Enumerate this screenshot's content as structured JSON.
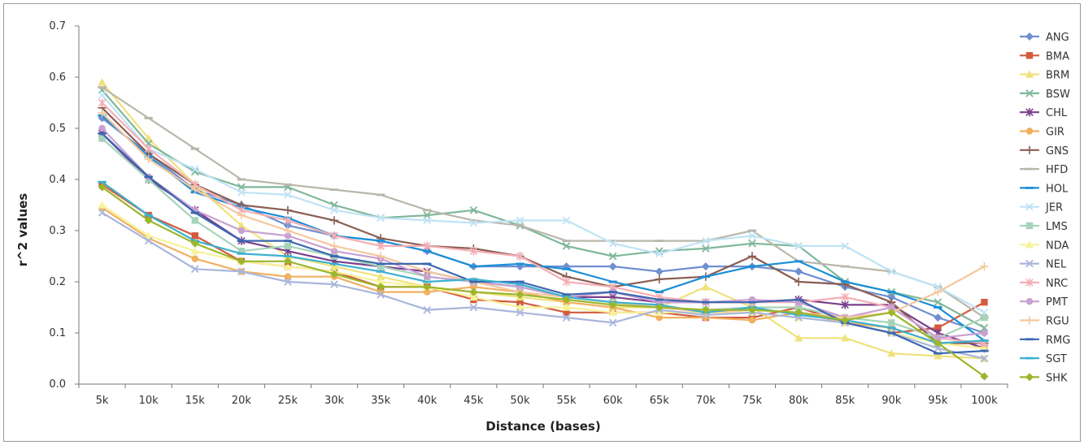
{
  "chart_data": {
    "type": "line",
    "title": "",
    "xlabel": "Distance (bases)",
    "ylabel": "r^2 values",
    "ylim": [
      0,
      0.7
    ],
    "yticks": [
      "0.0",
      "0.1",
      "0.2",
      "0.3",
      "0.4",
      "0.5",
      "0.6",
      "0.7"
    ],
    "grid": false,
    "legend_position": "right",
    "categories": [
      "5k",
      "10k",
      "15k",
      "20k",
      "25k",
      "30k",
      "35k",
      "40k",
      "45k",
      "50k",
      "55k",
      "60k",
      "65k",
      "70k",
      "75k",
      "80k",
      "85k",
      "90k",
      "95k",
      "100k"
    ],
    "series": [
      {
        "name": "ANG",
        "color": "#6f8fd0",
        "marker": "diamond",
        "values": [
          0.52,
          0.45,
          0.38,
          0.35,
          0.31,
          0.29,
          0.28,
          0.26,
          0.23,
          0.23,
          0.23,
          0.23,
          0.22,
          0.23,
          0.23,
          0.22,
          0.19,
          0.17,
          0.13,
          0.1
        ]
      },
      {
        "name": "BMA",
        "color": "#d35a3c",
        "marker": "square",
        "values": [
          0.39,
          0.33,
          0.29,
          0.24,
          0.23,
          0.22,
          0.19,
          0.19,
          0.165,
          0.16,
          0.14,
          0.14,
          0.14,
          0.13,
          0.13,
          0.15,
          0.12,
          0.1,
          0.11,
          0.16
        ]
      },
      {
        "name": "BRM",
        "color": "#efe27c",
        "marker": "triangle",
        "values": [
          0.59,
          0.48,
          0.39,
          0.31,
          0.25,
          0.23,
          0.21,
          0.19,
          0.18,
          0.17,
          0.16,
          0.15,
          0.15,
          0.19,
          0.15,
          0.09,
          0.09,
          0.06,
          0.055,
          0.05
        ]
      },
      {
        "name": "BSW",
        "color": "#7fb79a",
        "marker": "x",
        "values": [
          0.575,
          0.47,
          0.415,
          0.385,
          0.385,
          0.35,
          0.325,
          0.33,
          0.34,
          0.31,
          0.27,
          0.25,
          0.26,
          0.265,
          0.275,
          0.27,
          0.2,
          0.18,
          0.16,
          0.11
        ]
      },
      {
        "name": "CHL",
        "color": "#7a3f8c",
        "marker": "star",
        "values": [
          0.49,
          0.4,
          0.34,
          0.28,
          0.26,
          0.24,
          0.23,
          0.22,
          0.2,
          0.19,
          0.17,
          0.17,
          0.16,
          0.16,
          0.16,
          0.165,
          0.155,
          0.155,
          0.1,
          0.07
        ]
      },
      {
        "name": "GIR",
        "color": "#f0b060",
        "marker": "circle",
        "values": [
          0.345,
          0.285,
          0.245,
          0.22,
          0.21,
          0.21,
          0.18,
          0.18,
          0.19,
          0.18,
          0.16,
          0.15,
          0.13,
          0.13,
          0.125,
          0.14,
          0.12,
          0.11,
          0.08,
          0.07
        ]
      },
      {
        "name": "GNS",
        "color": "#8a5d52",
        "marker": "plus",
        "values": [
          0.54,
          0.45,
          0.39,
          0.35,
          0.34,
          0.32,
          0.285,
          0.27,
          0.265,
          0.25,
          0.21,
          0.19,
          0.205,
          0.21,
          0.25,
          0.2,
          0.195,
          0.16,
          0.08,
          0.08
        ]
      },
      {
        "name": "HFD",
        "color": "#b9b7ab",
        "marker": "dash",
        "values": [
          0.58,
          0.52,
          0.46,
          0.4,
          0.39,
          0.38,
          0.37,
          0.34,
          0.32,
          0.31,
          0.28,
          0.28,
          0.28,
          0.28,
          0.3,
          0.24,
          0.23,
          0.22,
          0.19,
          0.13
        ]
      },
      {
        "name": "HOL",
        "color": "#1a8fd6",
        "marker": "dash",
        "values": [
          0.525,
          0.445,
          0.375,
          0.345,
          0.325,
          0.29,
          0.28,
          0.26,
          0.23,
          0.235,
          0.225,
          0.2,
          0.18,
          0.21,
          0.23,
          0.24,
          0.2,
          0.18,
          0.15,
          0.085
        ]
      },
      {
        "name": "JER",
        "color": "#bfe3f5",
        "marker": "x",
        "values": [
          0.565,
          0.46,
          0.42,
          0.375,
          0.37,
          0.34,
          0.325,
          0.32,
          0.315,
          0.32,
          0.32,
          0.275,
          0.255,
          0.28,
          0.29,
          0.27,
          0.27,
          0.22,
          0.19,
          0.14
        ]
      },
      {
        "name": "LMS",
        "color": "#a6d4bb",
        "marker": "square",
        "values": [
          0.48,
          0.4,
          0.32,
          0.26,
          0.27,
          0.25,
          0.23,
          0.21,
          0.2,
          0.19,
          0.17,
          0.16,
          0.15,
          0.145,
          0.15,
          0.15,
          0.13,
          0.12,
          0.09,
          0.13
        ]
      },
      {
        "name": "NDA",
        "color": "#f8f29a",
        "marker": "triangle",
        "values": [
          0.35,
          0.29,
          0.26,
          0.24,
          0.23,
          0.22,
          0.2,
          0.19,
          0.17,
          0.15,
          0.15,
          0.14,
          0.14,
          0.14,
          0.14,
          0.13,
          0.12,
          0.1,
          0.08,
          0.07
        ]
      },
      {
        "name": "NEL",
        "color": "#a9b6dc",
        "marker": "x",
        "values": [
          0.335,
          0.28,
          0.225,
          0.22,
          0.2,
          0.195,
          0.175,
          0.145,
          0.15,
          0.14,
          0.13,
          0.12,
          0.145,
          0.135,
          0.14,
          0.13,
          0.12,
          0.1,
          0.07,
          0.05
        ]
      },
      {
        "name": "NRC",
        "color": "#f4aeb5",
        "marker": "star",
        "values": [
          0.55,
          0.46,
          0.39,
          0.34,
          0.32,
          0.29,
          0.27,
          0.27,
          0.26,
          0.25,
          0.2,
          0.19,
          0.17,
          0.16,
          0.16,
          0.16,
          0.17,
          0.15,
          0.09,
          0.08
        ]
      },
      {
        "name": "PMT",
        "color": "#c8a0d2",
        "marker": "circle",
        "values": [
          0.5,
          0.405,
          0.34,
          0.3,
          0.29,
          0.26,
          0.245,
          0.21,
          0.2,
          0.19,
          0.17,
          0.18,
          0.16,
          0.16,
          0.165,
          0.16,
          0.13,
          0.15,
          0.09,
          0.1
        ]
      },
      {
        "name": "RGU",
        "color": "#f5c89e",
        "marker": "plus",
        "values": [
          0.53,
          0.44,
          0.38,
          0.33,
          0.3,
          0.27,
          0.25,
          0.22,
          0.2,
          0.18,
          0.17,
          0.16,
          0.15,
          0.14,
          0.145,
          0.14,
          0.13,
          0.14,
          0.18,
          0.23
        ]
      },
      {
        "name": "RMG",
        "color": "#3b67b0",
        "marker": "dash",
        "values": [
          0.49,
          0.405,
          0.335,
          0.28,
          0.28,
          0.25,
          0.235,
          0.235,
          0.2,
          0.2,
          0.175,
          0.18,
          0.165,
          0.16,
          0.16,
          0.165,
          0.12,
          0.1,
          0.06,
          0.065
        ]
      },
      {
        "name": "SGT",
        "color": "#3cb0cf",
        "marker": "dash",
        "values": [
          0.395,
          0.33,
          0.28,
          0.255,
          0.25,
          0.235,
          0.22,
          0.2,
          0.205,
          0.195,
          0.17,
          0.16,
          0.155,
          0.14,
          0.15,
          0.135,
          0.125,
          0.11,
          0.08,
          0.085
        ]
      },
      {
        "name": "SHK",
        "color": "#9cb62c",
        "marker": "diamond",
        "values": [
          0.385,
          0.32,
          0.275,
          0.24,
          0.24,
          0.215,
          0.19,
          0.19,
          0.18,
          0.175,
          0.165,
          0.155,
          0.15,
          0.145,
          0.145,
          0.14,
          0.125,
          0.14,
          0.08,
          0.015
        ]
      }
    ]
  }
}
